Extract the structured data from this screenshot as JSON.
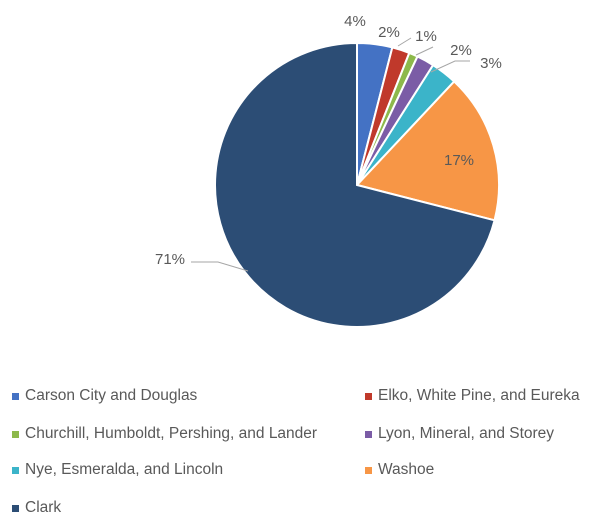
{
  "chart_data": {
    "type": "pie",
    "title": "",
    "categories": [
      "Carson City and Douglas",
      "Elko, White Pine, and Eureka",
      "Churchill, Humboldt, Pershing, and Lander",
      "Lyon, Mineral, and Storey",
      "Nye, Esmeralda, and Lincoln",
      "Washoe",
      "Clark"
    ],
    "values": [
      4,
      2,
      1,
      2,
      3,
      17,
      71
    ],
    "labels": [
      "4%",
      "2%",
      "1%",
      "2%",
      "3%",
      "17%",
      "71%"
    ],
    "colors": [
      "#4472C4",
      "#C0392B",
      "#8DB94B",
      "#7B5CA6",
      "#3BB4C9",
      "#F79646",
      "#2C4D75"
    ],
    "legend_position": "bottom"
  }
}
